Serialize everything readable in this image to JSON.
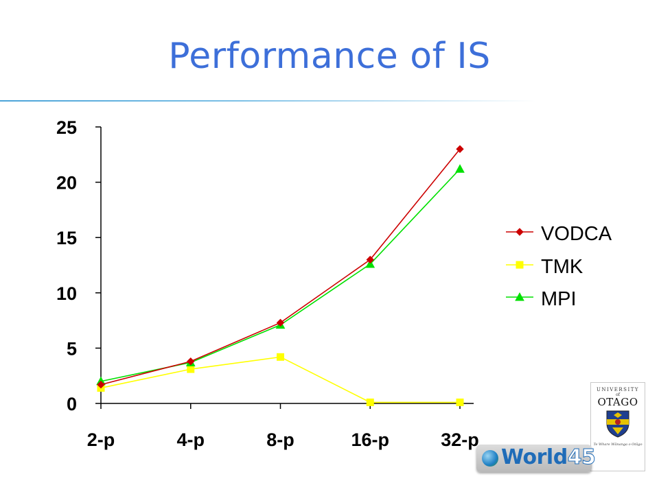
{
  "slide": {
    "title": "Performance of IS"
  },
  "chart_data": {
    "type": "line",
    "title": "",
    "categories": [
      "2-p",
      "4-p",
      "8-p",
      "16-p",
      "32-p"
    ],
    "ylim": [
      0,
      25
    ],
    "yticks": [
      0,
      5,
      10,
      15,
      20,
      25
    ],
    "grid": false,
    "legend_position": "right",
    "series": [
      {
        "name": "VODCA",
        "color": "#cc0000",
        "marker": "diamond",
        "values": [
          1.7,
          3.8,
          7.3,
          13.0,
          23.0
        ]
      },
      {
        "name": "TMK",
        "color": "#ffff00",
        "marker": "square",
        "values": [
          1.4,
          3.1,
          4.2,
          0.1,
          0.1
        ]
      },
      {
        "name": "MPI",
        "color": "#00e000",
        "marker": "triangle",
        "values": [
          2.0,
          3.7,
          7.1,
          12.6,
          21.2
        ]
      }
    ]
  },
  "logos": {
    "otago": {
      "line1": "UNIVERSITY",
      "line2": "of",
      "line3": "OTAGO",
      "motto": "Te Whare Wānanga o Otāgo"
    },
    "world": {
      "text": "World",
      "number": "45"
    }
  }
}
